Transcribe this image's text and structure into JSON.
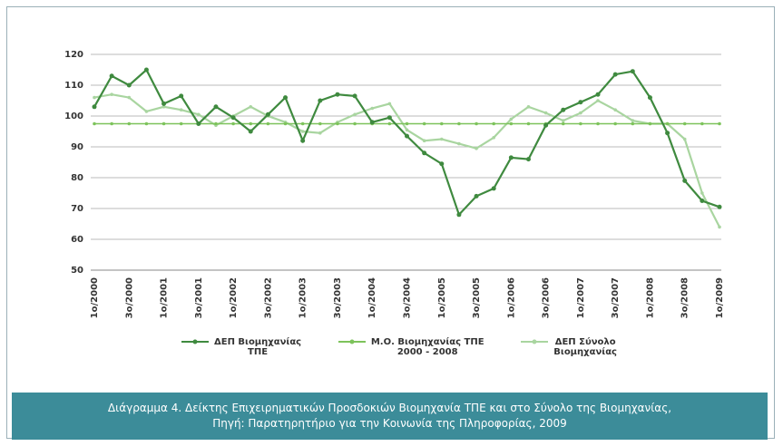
{
  "chart_data": {
    "type": "line",
    "categories": [
      "1o/2000",
      null,
      "3o/2000",
      null,
      "1o/2001",
      null,
      "3o/2001",
      null,
      "1o/2002",
      null,
      "3o/2002",
      null,
      "1o/2003",
      null,
      "3o/2003",
      null,
      "1o/2004",
      null,
      "3o/2004",
      null,
      "1o/2005",
      null,
      "3o/2005",
      null,
      "1o/2006",
      null,
      "3o/2006",
      null,
      "1o/2007",
      null,
      "3o/2007",
      null,
      "1o/2008",
      null,
      "3o/2008",
      null,
      "1o/2009"
    ],
    "series": [
      {
        "name": "ΔΕΠ Βιομηχανίας\nΤΠΕ",
        "color": "#3f8a3f",
        "values": [
          103,
          113,
          110,
          115,
          104,
          106.5,
          97.5,
          103,
          99.5,
          95,
          100.5,
          106,
          92,
          105,
          107,
          106.5,
          98,
          99.5,
          93.5,
          88,
          84.5,
          68,
          74,
          76.5,
          86.5,
          86,
          97,
          102,
          104.5,
          107,
          113.5,
          114.5,
          106,
          94.5,
          79,
          72.5,
          70.5
        ]
      },
      {
        "name": "Μ.Ο. Βιομηχανίας ΤΠΕ\n2000 - 2008",
        "color": "#7dc35b",
        "values": [
          97.5,
          97.5,
          97.5,
          97.5,
          97.5,
          97.5,
          97.5,
          97.5,
          97.5,
          97.5,
          97.5,
          97.5,
          97.5,
          97.5,
          97.5,
          97.5,
          97.5,
          97.5,
          97.5,
          97.5,
          97.5,
          97.5,
          97.5,
          97.5,
          97.5,
          97.5,
          97.5,
          97.5,
          97.5,
          97.5,
          97.5,
          97.5,
          97.5,
          97.5,
          97.5,
          97.5,
          97.5
        ]
      },
      {
        "name": "ΔΕΠ Σύνολο\nΒιομηχανίας",
        "color": "#a9d5a0",
        "values": [
          106,
          107,
          106,
          101.5,
          103,
          102,
          100.5,
          97,
          100,
          103,
          100,
          98,
          95,
          94.5,
          98,
          100.5,
          102.5,
          104,
          95.5,
          92,
          92.5,
          91,
          89.5,
          93,
          99,
          103,
          101,
          98.5,
          101,
          105,
          102,
          98.5,
          97.5,
          97.5,
          92.5,
          75,
          64
        ]
      }
    ],
    "ylim": [
      50,
      120
    ],
    "yticks": [
      50,
      60,
      70,
      80,
      90,
      100,
      110,
      120
    ],
    "grid": true,
    "legend": "bottom"
  },
  "caption": [
    "Διάγραμμα 4. Δείκτης Επιχειρηματικών Προσδοκιών Βιομηχανία ΤΠΕ και στο Σύνολο της Βιομηχανίας,",
    "Πηγή: Παρατηρητήριο για την Κοινωνία της Πληροφορίας, 2009"
  ]
}
